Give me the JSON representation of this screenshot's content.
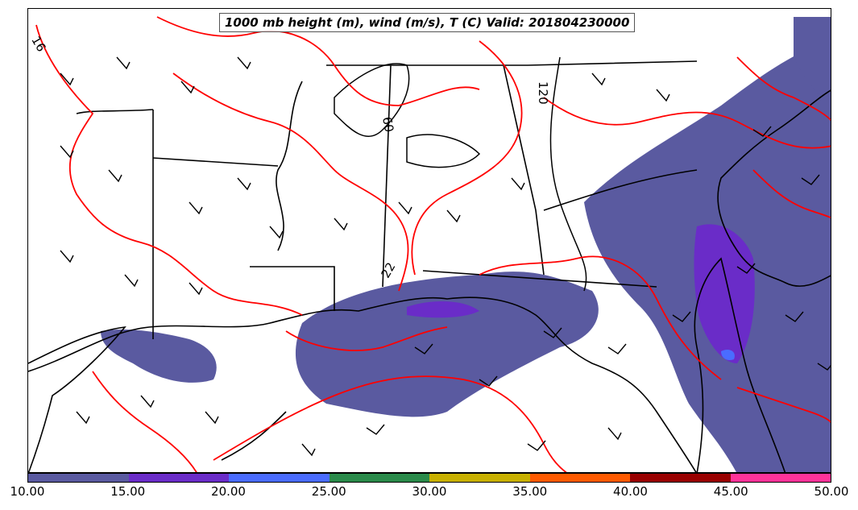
{
  "title": "1000 mb height (m), wind (m/s), T (C) Valid: 201804230000",
  "colorbar": {
    "ticks": [
      "10.00",
      "15.00",
      "20.00",
      "25.00",
      "30.00",
      "35.00",
      "40.00",
      "45.00",
      "50.00"
    ],
    "colors": [
      "#5a5aa0",
      "#6a2cc8",
      "#4a6cff",
      "#2a8a4a",
      "#c8b000",
      "#ff5a00",
      "#990000",
      "#ff3399"
    ]
  },
  "contour_labels": {
    "temp_left": "16",
    "height_mid": "60",
    "height_right": "120",
    "temp_mid": "22"
  },
  "colors": {
    "temperature_contour": "#ff0000",
    "height_contour": "#000000",
    "boundary": "#000000"
  }
}
